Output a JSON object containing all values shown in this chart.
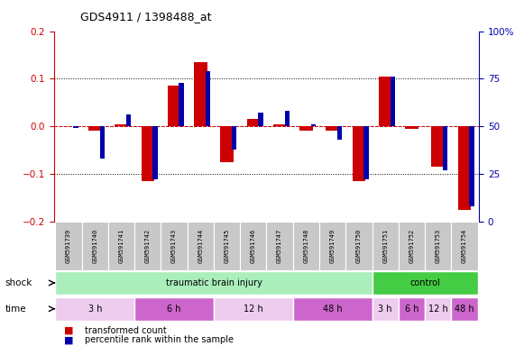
{
  "title": "GDS4911 / 1398488_at",
  "samples": [
    "GSM591739",
    "GSM591740",
    "GSM591741",
    "GSM591742",
    "GSM591743",
    "GSM591744",
    "GSM591745",
    "GSM591746",
    "GSM591747",
    "GSM591748",
    "GSM591749",
    "GSM591750",
    "GSM591751",
    "GSM591752",
    "GSM591753",
    "GSM591754"
  ],
  "red_values": [
    0.0,
    -0.01,
    0.005,
    -0.115,
    0.085,
    0.135,
    -0.075,
    0.015,
    0.005,
    -0.01,
    -0.01,
    -0.115,
    0.105,
    -0.005,
    -0.085,
    -0.175
  ],
  "blue_values_pct": [
    49,
    33,
    56,
    22,
    73,
    79,
    38,
    57,
    58,
    51,
    43,
    22,
    76,
    50,
    27,
    8
  ],
  "ylim_left": [
    -0.2,
    0.2
  ],
  "ylim_right": [
    0,
    100
  ],
  "red_color": "#CC0000",
  "blue_color": "#0000AA",
  "title_color": "#000000",
  "left_axis_color": "#CC0000",
  "right_axis_color": "#0000AA",
  "shock_tbi_color": "#AAEEBB",
  "shock_ctrl_color": "#44CC44",
  "time_light_color": "#EECCEE",
  "time_dark_color": "#CC66CC",
  "sample_box_color": "#C8C8C8",
  "legend_red": "transformed count",
  "legend_blue": "percentile rank within the sample",
  "shock_label": "shock",
  "time_label": "time",
  "shock_groups": [
    {
      "label": "traumatic brain injury",
      "start": 0,
      "end": 11
    },
    {
      "label": "control",
      "start": 12,
      "end": 15
    }
  ],
  "time_groups": [
    {
      "label": "3 h",
      "start": 0,
      "end": 2,
      "dark": false
    },
    {
      "label": "6 h",
      "start": 3,
      "end": 5,
      "dark": true
    },
    {
      "label": "12 h",
      "start": 6,
      "end": 8,
      "dark": false
    },
    {
      "label": "48 h",
      "start": 9,
      "end": 11,
      "dark": true
    },
    {
      "label": "3 h",
      "start": 12,
      "end": 12,
      "dark": false
    },
    {
      "label": "6 h",
      "start": 13,
      "end": 13,
      "dark": true
    },
    {
      "label": "12 h",
      "start": 14,
      "end": 14,
      "dark": false
    },
    {
      "label": "48 h",
      "start": 15,
      "end": 15,
      "dark": true
    }
  ]
}
